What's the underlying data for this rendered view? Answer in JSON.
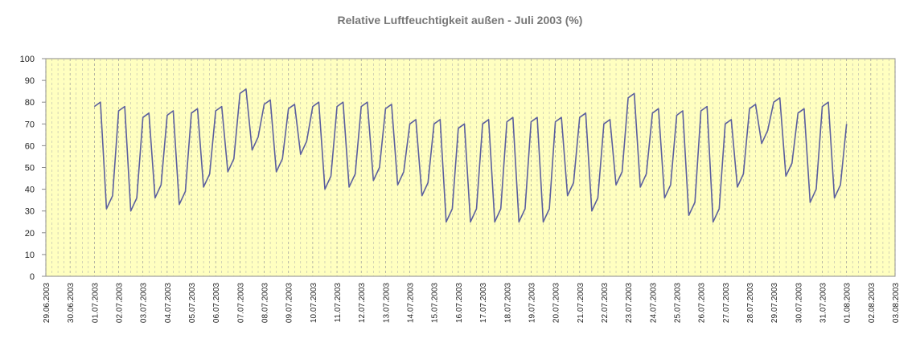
{
  "chart_data": {
    "type": "line",
    "title": "Relative Luftfeuchtigkeit außen - Juli 2003 (%)",
    "categories": [
      "29.06.2003",
      "30.06.2003",
      "01.07.2003",
      "02.07.2003",
      "03.07.2003",
      "04.07.2003",
      "05.07.2003",
      "06.07.2003",
      "07.07.2003",
      "08.07.2003",
      "09.07.2003",
      "10.07.2003",
      "11.07.2003",
      "12.07.2003",
      "13.07.2003",
      "14.07.2003",
      "15.07.2003",
      "16.07.2003",
      "17.07.2003",
      "18.07.2003",
      "19.07.2003",
      "20.07.2003",
      "21.07.2003",
      "22.07.2003",
      "23.07.2003",
      "24.07.2003",
      "25.07.2003",
      "26.07.2003",
      "27.07.2003",
      "28.07.2003",
      "29.07.2003",
      "30.07.2003",
      "31.07.2003",
      "01.08.2003",
      "02.08.2003",
      "03.08.2003"
    ],
    "series": [
      {
        "color": "#5b5f9e",
        "values": [
          null,
          null,
          [
            78,
            80,
            31,
            37
          ],
          [
            76,
            78,
            30,
            36
          ],
          [
            73,
            75,
            36,
            42
          ],
          [
            74,
            76,
            33,
            39
          ],
          [
            75,
            77,
            41,
            47
          ],
          [
            76,
            78,
            48,
            54
          ],
          [
            84,
            86,
            58,
            64
          ],
          [
            79,
            81,
            48,
            54
          ],
          [
            77,
            79,
            56,
            62
          ],
          [
            78,
            80,
            40,
            46
          ],
          [
            78,
            80,
            41,
            47
          ],
          [
            78,
            80,
            44,
            50
          ],
          [
            77,
            79,
            42,
            48
          ],
          [
            70,
            72,
            37,
            43
          ],
          [
            70,
            72,
            25,
            31
          ],
          [
            68,
            70,
            25,
            31
          ],
          [
            70,
            72,
            25,
            31
          ],
          [
            71,
            73,
            25,
            31
          ],
          [
            71,
            73,
            25,
            31
          ],
          [
            71,
            73,
            37,
            43
          ],
          [
            73,
            75,
            30,
            36
          ],
          [
            70,
            72,
            42,
            48
          ],
          [
            82,
            84,
            41,
            47
          ],
          [
            75,
            77,
            36,
            42
          ],
          [
            74,
            76,
            28,
            34
          ],
          [
            76,
            78,
            25,
            31
          ],
          [
            70,
            72,
            41,
            47
          ],
          [
            77,
            79,
            61,
            67
          ],
          [
            80,
            82,
            46,
            52
          ],
          [
            75,
            77,
            34,
            40
          ],
          [
            78,
            80,
            36,
            42
          ],
          [
            70,
            null,
            null,
            null
          ],
          null,
          null
        ]
      }
    ],
    "ylim": [
      0,
      100
    ],
    "yticks": [
      0,
      10,
      20,
      30,
      40,
      50,
      60,
      70,
      80,
      90,
      100
    ],
    "grid": true
  }
}
